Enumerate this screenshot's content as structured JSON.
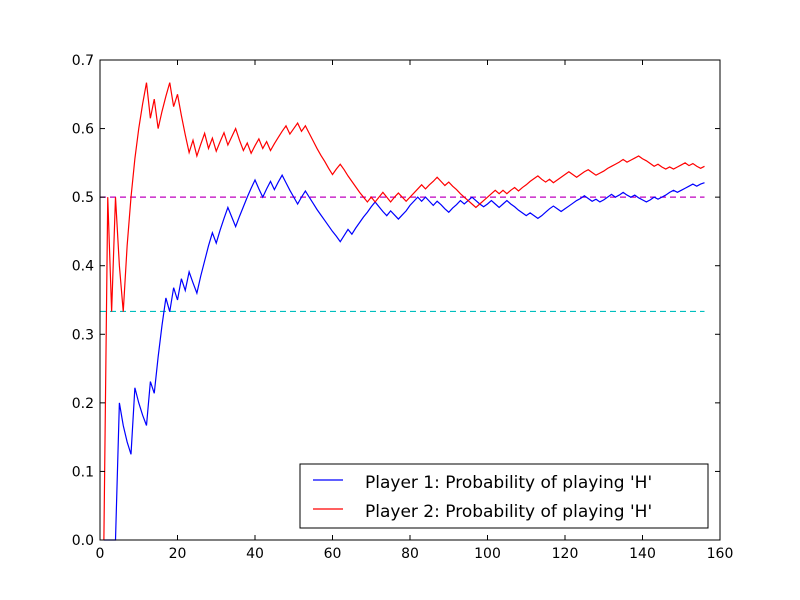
{
  "chart_data": {
    "type": "line",
    "title": "",
    "xlabel": "",
    "ylabel": "",
    "xlim": [
      0,
      160
    ],
    "ylim": [
      0.0,
      0.7
    ],
    "xticks": [
      0,
      20,
      40,
      60,
      80,
      100,
      120,
      140,
      160
    ],
    "yticks": [
      0.0,
      0.1,
      0.2,
      0.3,
      0.4,
      0.5,
      0.6,
      0.7
    ],
    "grid": false,
    "legend_position": "lower-right",
    "series": [
      {
        "name": "Player 1: Probability of playing 'H'",
        "color": "#0000ff",
        "x": [
          1,
          2,
          3,
          4,
          5,
          6,
          7,
          8,
          9,
          10,
          11,
          12,
          13,
          14,
          15,
          16,
          17,
          18,
          19,
          20,
          21,
          22,
          23,
          24,
          25,
          26,
          27,
          28,
          29,
          30,
          31,
          32,
          33,
          34,
          35,
          36,
          37,
          38,
          39,
          40,
          41,
          42,
          43,
          44,
          45,
          46,
          47,
          48,
          49,
          50,
          51,
          52,
          53,
          54,
          55,
          56,
          57,
          58,
          59,
          60,
          61,
          62,
          63,
          64,
          65,
          66,
          67,
          68,
          69,
          70,
          71,
          72,
          73,
          74,
          75,
          76,
          77,
          78,
          79,
          80,
          81,
          82,
          83,
          84,
          85,
          86,
          87,
          88,
          89,
          90,
          91,
          92,
          93,
          94,
          95,
          96,
          97,
          98,
          99,
          100,
          101,
          102,
          103,
          104,
          105,
          106,
          107,
          108,
          109,
          110,
          111,
          112,
          113,
          114,
          115,
          116,
          117,
          118,
          119,
          120,
          121,
          122,
          123,
          124,
          125,
          126,
          127,
          128,
          129,
          130,
          131,
          132,
          133,
          134,
          135,
          136,
          137,
          138,
          139,
          140,
          141,
          142,
          143,
          144,
          145,
          146,
          147,
          148,
          149,
          150,
          151,
          152,
          153,
          154,
          155,
          156
        ],
        "values": [
          0.0,
          0.0,
          0.0,
          0.0,
          0.2,
          0.167,
          0.143,
          0.125,
          0.222,
          0.2,
          0.182,
          0.167,
          0.231,
          0.214,
          0.267,
          0.313,
          0.353,
          0.333,
          0.368,
          0.35,
          0.381,
          0.364,
          0.391,
          0.375,
          0.36,
          0.385,
          0.407,
          0.429,
          0.448,
          0.433,
          0.452,
          0.469,
          0.485,
          0.471,
          0.457,
          0.472,
          0.486,
          0.5,
          0.513,
          0.525,
          0.512,
          0.5,
          0.512,
          0.523,
          0.511,
          0.522,
          0.532,
          0.521,
          0.51,
          0.5,
          0.49,
          0.5,
          0.509,
          0.5,
          0.491,
          0.482,
          0.474,
          0.466,
          0.458,
          0.45,
          0.443,
          0.435,
          0.444,
          0.453,
          0.446,
          0.455,
          0.463,
          0.471,
          0.478,
          0.486,
          0.493,
          0.486,
          0.479,
          0.473,
          0.48,
          0.474,
          0.468,
          0.474,
          0.48,
          0.488,
          0.494,
          0.5,
          0.494,
          0.5,
          0.494,
          0.488,
          0.494,
          0.489,
          0.483,
          0.478,
          0.484,
          0.489,
          0.495,
          0.49,
          0.495,
          0.5,
          0.495,
          0.49,
          0.486,
          0.49,
          0.495,
          0.49,
          0.485,
          0.49,
          0.495,
          0.49,
          0.486,
          0.481,
          0.477,
          0.473,
          0.477,
          0.473,
          0.469,
          0.473,
          0.478,
          0.483,
          0.487,
          0.483,
          0.479,
          0.483,
          0.487,
          0.491,
          0.495,
          0.498,
          0.502,
          0.498,
          0.494,
          0.497,
          0.493,
          0.496,
          0.5,
          0.504,
          0.5,
          0.503,
          0.507,
          0.503,
          0.5,
          0.503,
          0.499,
          0.496,
          0.493,
          0.496,
          0.5,
          0.497,
          0.5,
          0.503,
          0.507,
          0.51,
          0.507,
          0.51,
          0.513,
          0.516,
          0.519,
          0.516,
          0.519,
          0.521
        ]
      },
      {
        "name": "Player 2: Probability of playing 'H'",
        "color": "#ff0000",
        "x": [
          1,
          2,
          3,
          4,
          5,
          6,
          7,
          8,
          9,
          10,
          11,
          12,
          13,
          14,
          15,
          16,
          17,
          18,
          19,
          20,
          21,
          22,
          23,
          24,
          25,
          26,
          27,
          28,
          29,
          30,
          31,
          32,
          33,
          34,
          35,
          36,
          37,
          38,
          39,
          40,
          41,
          42,
          43,
          44,
          45,
          46,
          47,
          48,
          49,
          50,
          51,
          52,
          53,
          54,
          55,
          56,
          57,
          58,
          59,
          60,
          61,
          62,
          63,
          64,
          65,
          66,
          67,
          68,
          69,
          70,
          71,
          72,
          73,
          74,
          75,
          76,
          77,
          78,
          79,
          80,
          81,
          82,
          83,
          84,
          85,
          86,
          87,
          88,
          89,
          90,
          91,
          92,
          93,
          94,
          95,
          96,
          97,
          98,
          99,
          100,
          101,
          102,
          103,
          104,
          105,
          106,
          107,
          108,
          109,
          110,
          111,
          112,
          113,
          114,
          115,
          116,
          117,
          118,
          119,
          120,
          121,
          122,
          123,
          124,
          125,
          126,
          127,
          128,
          129,
          130,
          131,
          132,
          133,
          134,
          135,
          136,
          137,
          138,
          139,
          140,
          141,
          142,
          143,
          144,
          145,
          146,
          147,
          148,
          149,
          150,
          151,
          152,
          153,
          154,
          155,
          156
        ],
        "values": [
          0.0,
          0.5,
          0.333,
          0.5,
          0.4,
          0.333,
          0.429,
          0.5,
          0.556,
          0.6,
          0.636,
          0.667,
          0.615,
          0.643,
          0.6,
          0.625,
          0.647,
          0.667,
          0.632,
          0.65,
          0.619,
          0.591,
          0.565,
          0.583,
          0.56,
          0.577,
          0.593,
          0.571,
          0.586,
          0.567,
          0.581,
          0.594,
          0.576,
          0.588,
          0.6,
          0.583,
          0.568,
          0.579,
          0.564,
          0.575,
          0.585,
          0.571,
          0.581,
          0.568,
          0.578,
          0.587,
          0.596,
          0.604,
          0.592,
          0.6,
          0.608,
          0.596,
          0.604,
          0.593,
          0.582,
          0.571,
          0.561,
          0.552,
          0.542,
          0.533,
          0.541,
          0.548,
          0.54,
          0.531,
          0.523,
          0.515,
          0.507,
          0.5,
          0.493,
          0.5,
          0.493,
          0.5,
          0.507,
          0.5,
          0.493,
          0.5,
          0.506,
          0.5,
          0.494,
          0.5,
          0.506,
          0.512,
          0.518,
          0.512,
          0.518,
          0.523,
          0.529,
          0.523,
          0.517,
          0.522,
          0.516,
          0.511,
          0.505,
          0.5,
          0.495,
          0.49,
          0.485,
          0.49,
          0.495,
          0.5,
          0.505,
          0.51,
          0.505,
          0.51,
          0.505,
          0.51,
          0.514,
          0.509,
          0.514,
          0.518,
          0.523,
          0.527,
          0.531,
          0.526,
          0.522,
          0.526,
          0.521,
          0.525,
          0.529,
          0.533,
          0.537,
          0.533,
          0.529,
          0.533,
          0.537,
          0.54,
          0.536,
          0.532,
          0.535,
          0.538,
          0.542,
          0.545,
          0.548,
          0.551,
          0.555,
          0.551,
          0.554,
          0.557,
          0.56,
          0.556,
          0.553,
          0.549,
          0.545,
          0.548,
          0.544,
          0.541,
          0.544,
          0.541,
          0.544,
          0.547,
          0.55,
          0.546,
          0.549,
          0.545,
          0.542,
          0.545
        ]
      }
    ],
    "reference_lines": [
      {
        "y": 0.5,
        "color": "#bf00bf",
        "style": "dashed",
        "x_from": 0,
        "x_to": 156
      },
      {
        "y": 0.3333,
        "color": "#00bfbf",
        "style": "dashed",
        "x_from": 0,
        "x_to": 156
      }
    ]
  }
}
